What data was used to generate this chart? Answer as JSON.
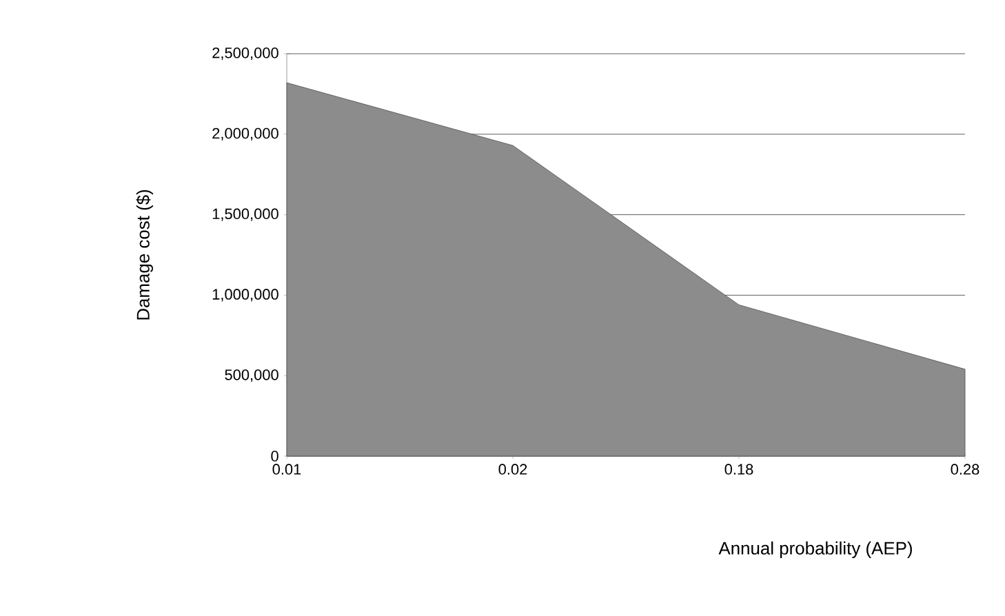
{
  "chart_data": {
    "type": "area",
    "xlabel": "Annual probability (AEP)",
    "ylabel": "Damage cost ($)",
    "categories": [
      "0.01",
      "0.02",
      "0.18",
      "0.28"
    ],
    "values": [
      2320000,
      1930000,
      940000,
      540000
    ],
    "color": "#8c8c8c",
    "ylim": [
      0,
      2500000
    ],
    "yticks": [
      {
        "value": 0,
        "label": "0"
      },
      {
        "value": 500000,
        "label": "500,000"
      },
      {
        "value": 1000000,
        "label": "1,000,000"
      },
      {
        "value": 1500000,
        "label": "1,500,000"
      },
      {
        "value": 2000000,
        "label": "2,000,000"
      },
      {
        "value": 2500000,
        "label": "2,500,000"
      }
    ],
    "grid": "y"
  }
}
